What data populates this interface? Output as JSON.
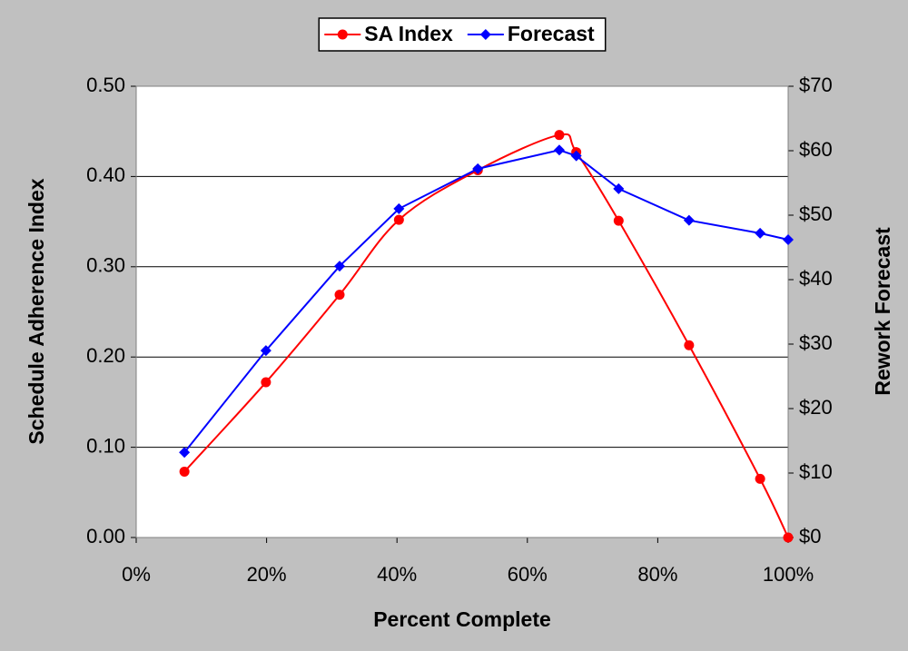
{
  "chart_data": {
    "type": "line",
    "x": [
      7.4,
      19.9,
      31.2,
      40.3,
      52.4,
      64.9,
      67.5,
      74.0,
      84.8,
      95.7,
      100
    ],
    "series": [
      {
        "name": "SA Index",
        "color": "#ff0000",
        "marker": "circle",
        "smooth": true,
        "axis": "y",
        "values": [
          0.073,
          0.172,
          0.269,
          0.352,
          0.407,
          0.446,
          0.427,
          0.351,
          0.213,
          0.065,
          0.0
        ]
      },
      {
        "name": "Forecast",
        "color": "#0000ff",
        "marker": "diamond",
        "smooth": false,
        "axis": "y2",
        "values": [
          13.2,
          29.0,
          42.1,
          51.0,
          57.2,
          60.1,
          59.2,
          54.1,
          49.2,
          47.2,
          46.2
        ]
      }
    ],
    "xlabel": "Percent Complete",
    "ylabel": "Schedule Adherence Index",
    "y2label": "Rework Forecast",
    "xlim": [
      0,
      100
    ],
    "xticks": [
      {
        "value": 0,
        "label": "0%"
      },
      {
        "value": 20,
        "label": "20%"
      },
      {
        "value": 40,
        "label": "40%"
      },
      {
        "value": 60,
        "label": "60%"
      },
      {
        "value": 80,
        "label": "80%"
      },
      {
        "value": 100,
        "label": "100%"
      }
    ],
    "ylim": [
      0,
      0.5
    ],
    "yticks": [
      {
        "value": 0,
        "label": "0.00"
      },
      {
        "value": 0.1,
        "label": "0.10"
      },
      {
        "value": 0.2,
        "label": "0.20"
      },
      {
        "value": 0.3,
        "label": "0.30"
      },
      {
        "value": 0.4,
        "label": "0.40"
      },
      {
        "value": 0.5,
        "label": "0.50"
      }
    ],
    "y2lim": [
      0,
      70
    ],
    "y2ticks": [
      {
        "value": 0,
        "label": "$0"
      },
      {
        "value": 10,
        "label": "$10"
      },
      {
        "value": 20,
        "label": "$20"
      },
      {
        "value": 30,
        "label": "$30"
      },
      {
        "value": 40,
        "label": "$40"
      },
      {
        "value": 50,
        "label": "$50"
      },
      {
        "value": 60,
        "label": "$60"
      },
      {
        "value": 70,
        "label": "$70"
      }
    ],
    "grid": true,
    "legend": "top"
  }
}
